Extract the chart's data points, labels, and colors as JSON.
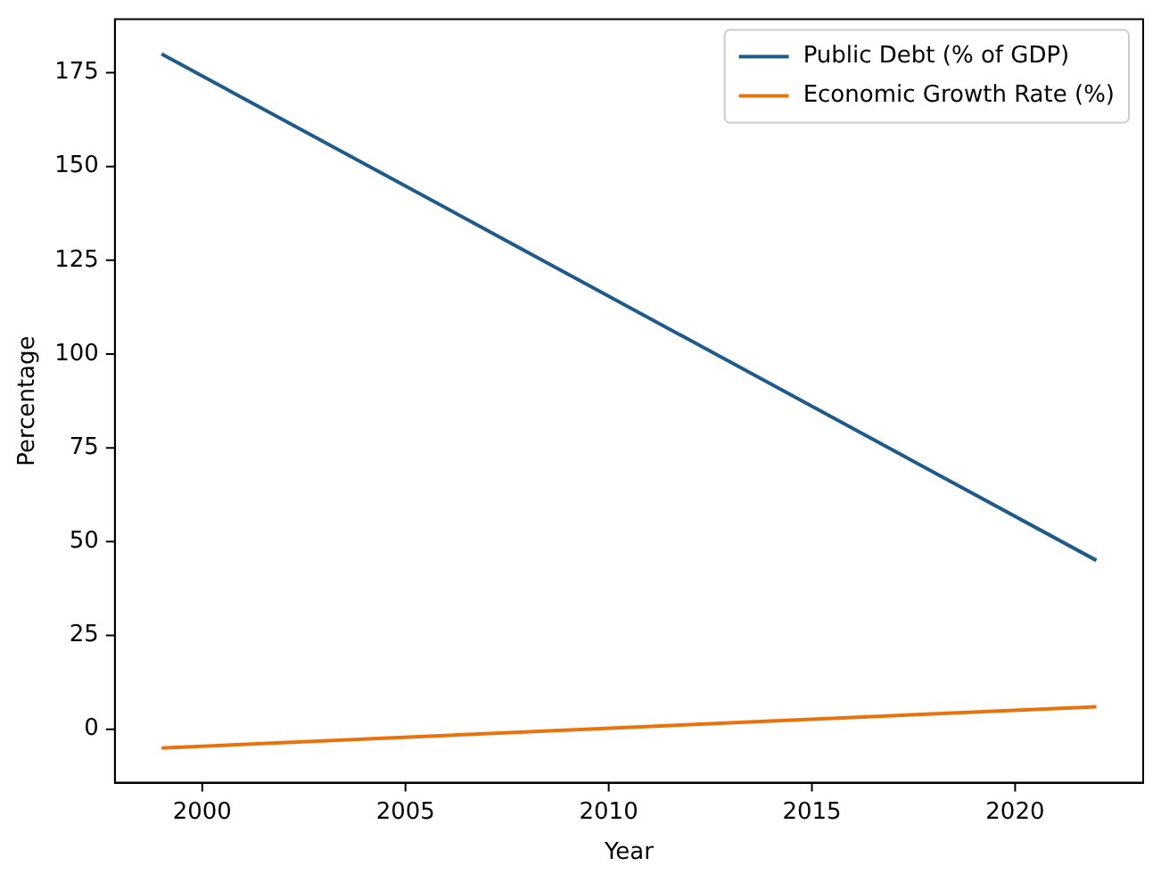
{
  "chart_data": {
    "type": "line",
    "xlabel": "Year",
    "ylabel": "Percentage",
    "x": [
      1999,
      2022
    ],
    "series": [
      {
        "name": "Public Debt (% of GDP)",
        "color": "#1f5b8a",
        "values": [
          180,
          45
        ]
      },
      {
        "name": "Economic Growth Rate (%)",
        "color": "#e8730c",
        "values": [
          -5,
          6
        ]
      }
    ],
    "xlim": [
      1997.85,
      2023.15
    ],
    "xticks": [
      2000,
      2005,
      2010,
      2015,
      2020
    ],
    "ylim": [
      -14.25,
      189.25
    ],
    "yticks": [
      0,
      25,
      50,
      75,
      100,
      125,
      150,
      175
    ],
    "grid": false,
    "legend": "top right",
    "line_style": "solid",
    "marker": "none"
  }
}
